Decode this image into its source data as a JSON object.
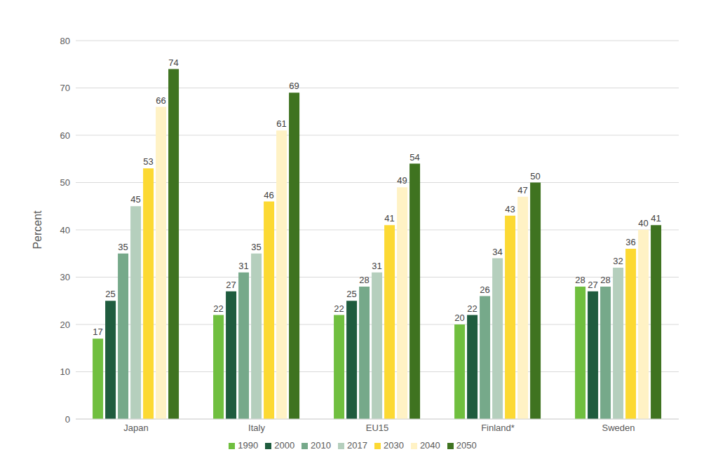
{
  "chart_data": {
    "type": "bar",
    "y_label": "Percent",
    "categories": [
      "Japan",
      "Italy",
      "EU15",
      "Finland*",
      "Sweden"
    ],
    "series": [
      {
        "name": "1990",
        "color": "#70bf3f",
        "values": [
          17,
          22,
          22,
          20,
          28
        ]
      },
      {
        "name": "2000",
        "color": "#1f5c3e",
        "values": [
          25,
          27,
          25,
          22,
          27
        ]
      },
      {
        "name": "2010",
        "color": "#76a98a",
        "values": [
          35,
          31,
          28,
          26,
          28
        ]
      },
      {
        "name": "2017",
        "color": "#b5cfbd",
        "values": [
          45,
          35,
          31,
          34,
          32
        ]
      },
      {
        "name": "2030",
        "color": "#fcd933",
        "values": [
          53,
          46,
          41,
          43,
          36
        ]
      },
      {
        "name": "2040",
        "color": "#fff2c5",
        "values": [
          66,
          61,
          49,
          47,
          40
        ]
      },
      {
        "name": "2050",
        "color": "#3f7320",
        "values": [
          74,
          69,
          54,
          50,
          41
        ]
      }
    ],
    "ylim": [
      0,
      80
    ],
    "yticks": [
      0,
      10,
      20,
      30,
      40,
      50,
      60,
      70,
      80
    ],
    "grid": true,
    "legend": "bottom",
    "data_labels": true
  }
}
